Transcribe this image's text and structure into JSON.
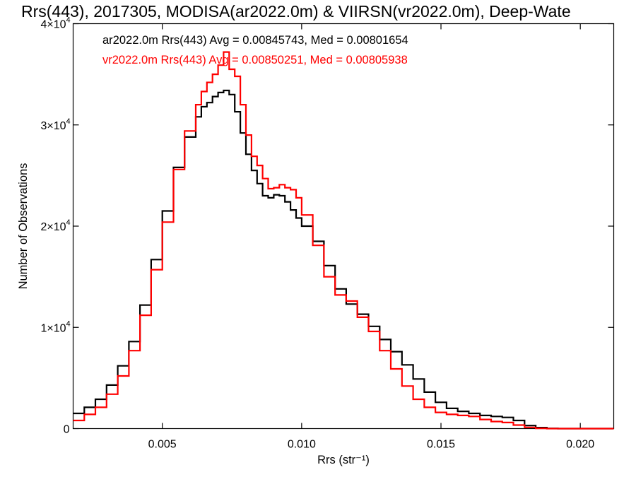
{
  "chart_data": {
    "type": "line",
    "title": "Rrs(443), 2017305, MODISA(ar2022.0m) & VIIRSN(vr2022.0m), Deep-Wate",
    "xlabel": "Rrs (str⁻¹)",
    "ylabel": "Number of Observations",
    "xlim": [
      0.0018,
      0.0212
    ],
    "ylim": [
      0,
      40000
    ],
    "x_ticks": [
      {
        "value": 0.005,
        "label": "0.005"
      },
      {
        "value": 0.01,
        "label": "0.010"
      },
      {
        "value": 0.015,
        "label": "0.015"
      },
      {
        "value": 0.02,
        "label": "0.020"
      }
    ],
    "y_ticks": [
      {
        "value": 0,
        "label": "0",
        "exp": ""
      },
      {
        "value": 10000,
        "label": "1×10",
        "exp": "4"
      },
      {
        "value": 20000,
        "label": "2×10",
        "exp": "4"
      },
      {
        "value": 30000,
        "label": "3×10",
        "exp": "4"
      },
      {
        "value": 40000,
        "label": "4×10",
        "exp": "4"
      }
    ],
    "grid": false,
    "legend_position": "top-left",
    "series": [
      {
        "name": "ar2022.0m Rrs(443) Avg = 0.00845743, Med = 0.00801654",
        "color": "#000000",
        "x": [
          0.0018,
          0.0022,
          0.0026,
          0.003,
          0.0034,
          0.0038,
          0.0042,
          0.0046,
          0.005,
          0.0054,
          0.0058,
          0.0062,
          0.0064,
          0.0066,
          0.0068,
          0.007,
          0.0072,
          0.0074,
          0.0076,
          0.0078,
          0.008,
          0.0082,
          0.0084,
          0.0086,
          0.0088,
          0.009,
          0.0092,
          0.0094,
          0.0096,
          0.0098,
          0.01,
          0.0104,
          0.0108,
          0.0112,
          0.0116,
          0.012,
          0.0124,
          0.0128,
          0.0132,
          0.0136,
          0.014,
          0.0144,
          0.0148,
          0.0152,
          0.0156,
          0.016,
          0.0164,
          0.0168,
          0.0172,
          0.0176,
          0.018,
          0.0184,
          0.0188,
          0.0192,
          0.02,
          0.0212
        ],
        "values": [
          1500,
          2100,
          2900,
          4300,
          6200,
          8600,
          12200,
          16700,
          21500,
          25800,
          28800,
          30800,
          31800,
          32200,
          32800,
          33200,
          33400,
          33000,
          31300,
          29200,
          27100,
          25500,
          24200,
          23000,
          22800,
          23100,
          23000,
          22400,
          21600,
          20800,
          20000,
          18500,
          16100,
          13800,
          12300,
          11300,
          10100,
          8800,
          7600,
          6300,
          4900,
          3600,
          2600,
          2000,
          1700,
          1500,
          1300,
          1200,
          1100,
          800,
          300,
          100,
          20,
          0,
          0,
          0
        ]
      },
      {
        "name": "vr2022.0m Rrs(443) Avg = 0.00850251, Med = 0.00805938",
        "color": "#ff0000",
        "x": [
          0.0018,
          0.0022,
          0.0026,
          0.003,
          0.0034,
          0.0038,
          0.0042,
          0.0046,
          0.005,
          0.0054,
          0.0058,
          0.0062,
          0.0064,
          0.0066,
          0.0068,
          0.007,
          0.0072,
          0.0074,
          0.0076,
          0.0078,
          0.008,
          0.0082,
          0.0084,
          0.0086,
          0.0088,
          0.009,
          0.0092,
          0.0094,
          0.0096,
          0.0098,
          0.01,
          0.0104,
          0.0108,
          0.0112,
          0.0116,
          0.012,
          0.0124,
          0.0128,
          0.0132,
          0.0136,
          0.014,
          0.0144,
          0.0148,
          0.0152,
          0.0156,
          0.016,
          0.0164,
          0.0168,
          0.0172,
          0.0176,
          0.018,
          0.0184,
          0.0188,
          0.0192,
          0.02,
          0.0212
        ],
        "values": [
          800,
          1400,
          2100,
          3400,
          5200,
          7700,
          11200,
          15700,
          20400,
          25600,
          29400,
          32000,
          33300,
          34200,
          35000,
          35900,
          37200,
          35500,
          34800,
          32000,
          29000,
          26900,
          26000,
          24700,
          23700,
          23800,
          24100,
          23800,
          23600,
          22800,
          21100,
          18100,
          15000,
          13200,
          12600,
          11000,
          9600,
          7700,
          5900,
          4200,
          2900,
          2100,
          1600,
          1400,
          1300,
          1200,
          900,
          700,
          600,
          350,
          120,
          30,
          0,
          0,
          0,
          0
        ]
      }
    ]
  }
}
